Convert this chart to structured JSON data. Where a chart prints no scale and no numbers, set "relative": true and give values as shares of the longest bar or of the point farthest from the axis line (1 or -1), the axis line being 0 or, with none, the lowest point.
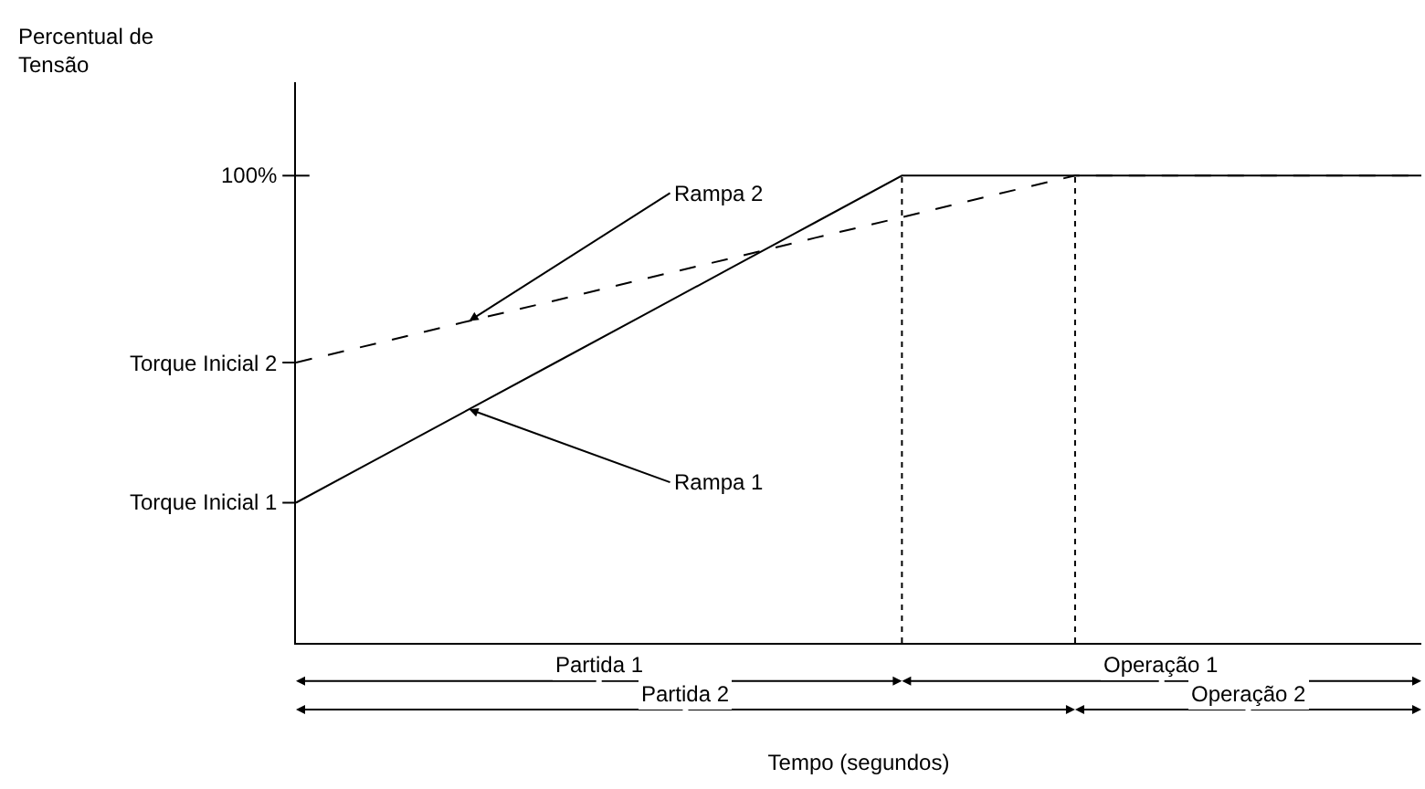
{
  "chart_data": {
    "type": "line",
    "relative": true,
    "xlabel": "Tempo (segundos)",
    "categories": [
      null,
      null,
      null,
      null,
      null,
      null,
      null,
      null,
      null,
      null,
      null,
      null,
      null,
      null
    ],
    "legend": false,
    "marker": "none",
    "series": [
      {
        "name": "Rampa 1",
        "color": "#000000",
        "values": [
          0.3,
          0.4,
          0.5,
          0.6,
          0.7,
          0.8,
          0.9,
          1,
          1,
          1,
          1,
          1,
          1,
          1
        ],
        "line_style": "solid"
      },
      {
        "name": "Rampa 2",
        "color": "#000000",
        "values": [
          0.6,
          0.644,
          0.689,
          0.733,
          0.778,
          0.822,
          0.867,
          0.911,
          0.956,
          1,
          1,
          1,
          1,
          1
        ],
        "line_style": "dashed"
      }
    ],
    "annotations": [
      "100%",
      "Torque Inicial 1",
      "Torque Inicial 2",
      "Partida 1",
      "Operação 1",
      "Partida 2",
      "Operação 2",
      "Percentual de Tensão"
    ]
  }
}
